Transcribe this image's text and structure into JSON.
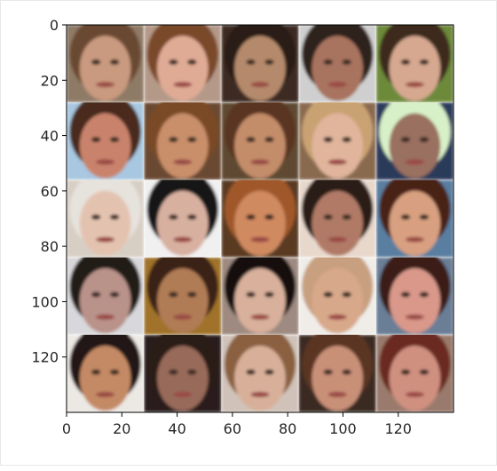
{
  "chart_data": {
    "type": "image-grid",
    "title": "",
    "xlabel": "",
    "ylabel": "",
    "xlim": [
      0,
      140
    ],
    "ylim": [
      140,
      0
    ],
    "xticks": [
      0,
      20,
      40,
      60,
      80,
      100,
      120
    ],
    "yticks": [
      0,
      20,
      40,
      60,
      80,
      100,
      120
    ],
    "grid": {
      "rows": 5,
      "cols": 5,
      "cell_size": 28
    },
    "cells": [
      {
        "row": 0,
        "col": 0,
        "skin": "#c99a7f",
        "hair": "#6b4a32",
        "bg": "#8f7a66"
      },
      {
        "row": 0,
        "col": 1,
        "skin": "#e0ab95",
        "hair": "#7a4a2c",
        "bg": "#b59988"
      },
      {
        "row": 0,
        "col": 2,
        "skin": "#b58a6c",
        "hair": "#2a1d16",
        "bg": "#3c2c22"
      },
      {
        "row": 0,
        "col": 3,
        "skin": "#a8735e",
        "hair": "#2e201a",
        "bg": "#cfcfcf"
      },
      {
        "row": 0,
        "col": 4,
        "skin": "#d6a88f",
        "hair": "#3d2a1c",
        "bg": "#6d8a3a"
      },
      {
        "row": 1,
        "col": 0,
        "skin": "#c9836c",
        "hair": "#4a2a1c",
        "bg": "#a8c7e0"
      },
      {
        "row": 1,
        "col": 1,
        "skin": "#c98f6a",
        "hair": "#7a4a28",
        "bg": "#6b4a30"
      },
      {
        "row": 1,
        "col": 2,
        "skin": "#c48d6a",
        "hair": "#5a3520",
        "bg": "#5e4a30"
      },
      {
        "row": 1,
        "col": 3,
        "skin": "#e0b59c",
        "hair": "#c9a273",
        "bg": "#8a6b50"
      },
      {
        "row": 1,
        "col": 4,
        "skin": "#9a7060",
        "hair": "#d8f0c8",
        "bg": "#2a3a5a"
      },
      {
        "row": 2,
        "col": 0,
        "skin": "#e3c3b0",
        "hair": "#e6e2dc",
        "bg": "#d8cfc4"
      },
      {
        "row": 2,
        "col": 1,
        "skin": "#d8b0a0",
        "hair": "#151515",
        "bg": "#f0f0f0"
      },
      {
        "row": 2,
        "col": 2,
        "skin": "#d08a60",
        "hair": "#a0582c",
        "bg": "#5a3a24"
      },
      {
        "row": 2,
        "col": 3,
        "skin": "#b07a66",
        "hair": "#2a1a14",
        "bg": "#e8d8cc"
      },
      {
        "row": 2,
        "col": 4,
        "skin": "#d8a080",
        "hair": "#4a2418",
        "bg": "#5a7ea0"
      },
      {
        "row": 3,
        "col": 0,
        "skin": "#b9928a",
        "hair": "#201a18",
        "bg": "#d8d8dc"
      },
      {
        "row": 3,
        "col": 1,
        "skin": "#b07b55",
        "hair": "#3a2414",
        "bg": "#a0722c"
      },
      {
        "row": 3,
        "col": 2,
        "skin": "#d8b09c",
        "hair": "#141010",
        "bg": "#9e8a80"
      },
      {
        "row": 3,
        "col": 3,
        "skin": "#d8a88a",
        "hair": "#c8a080",
        "bg": "#f0ede8"
      },
      {
        "row": 3,
        "col": 4,
        "skin": "#d9988a",
        "hair": "#3a1d18",
        "bg": "#6a7e96"
      },
      {
        "row": 4,
        "col": 0,
        "skin": "#c48a65",
        "hair": "#221612",
        "bg": "#ece8e4"
      },
      {
        "row": 4,
        "col": 1,
        "skin": "#986a5a",
        "hair": "#2a1a18",
        "bg": "#2a1e1c"
      },
      {
        "row": 4,
        "col": 2,
        "skin": "#d8b09a",
        "hair": "#8a6040",
        "bg": "#d0c2b8"
      },
      {
        "row": 4,
        "col": 3,
        "skin": "#c99078",
        "hair": "#5a3420",
        "bg": "#3a2a20"
      },
      {
        "row": 4,
        "col": 4,
        "skin": "#d09080",
        "hair": "#6a2a20",
        "bg": "#9a7a6c"
      }
    ]
  }
}
